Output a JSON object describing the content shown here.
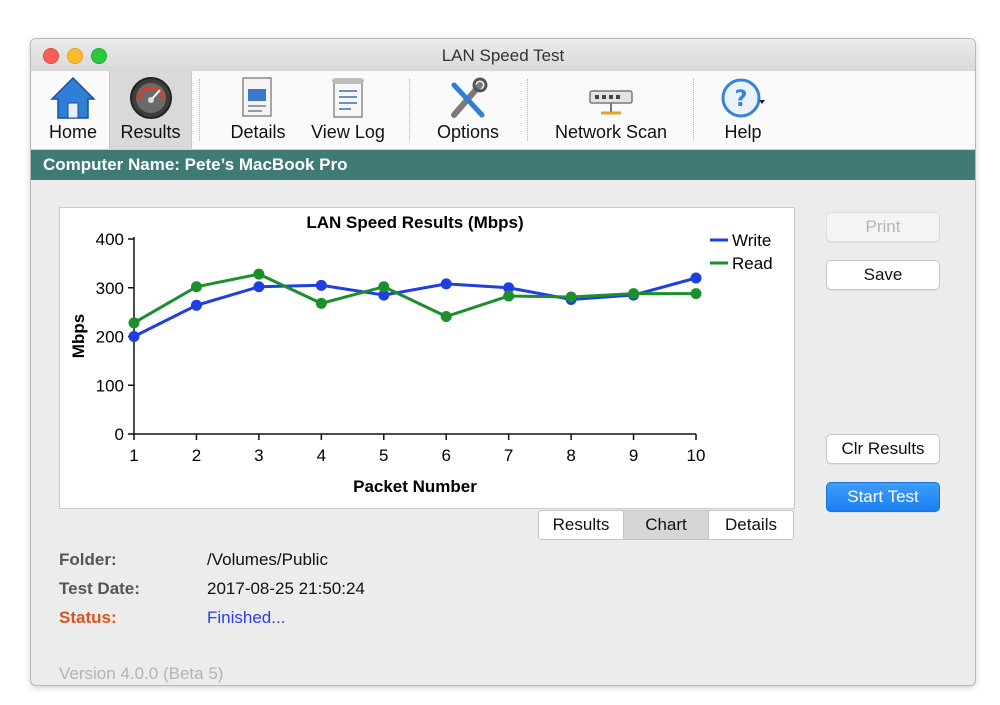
{
  "window": {
    "title": "LAN Speed Test"
  },
  "toolbar": {
    "items": [
      {
        "label": "Home",
        "icon": "home-icon"
      },
      {
        "label": "Results",
        "icon": "gauge-icon",
        "active": true
      },
      {
        "label": "Details",
        "icon": "details-icon"
      },
      {
        "label": "View Log",
        "icon": "log-icon"
      },
      {
        "label": "Options",
        "icon": "tools-icon"
      },
      {
        "label": "Network Scan",
        "icon": "network-switch-icon"
      },
      {
        "label": "Help",
        "icon": "help-icon"
      }
    ]
  },
  "computer": {
    "label": "Computer Name: Pete’s MacBook Pro"
  },
  "buttons": {
    "print": "Print",
    "save": "Save",
    "clear": "Clr Results",
    "start": "Start Test"
  },
  "tabs": {
    "results": "Results",
    "chart": "Chart",
    "details": "Details",
    "selected": "Chart"
  },
  "info": {
    "folder_label": "Folder:",
    "folder_value": "/Volumes/Public",
    "date_label": "Test Date:",
    "date_value": "2017-08-25 21:50:24",
    "status_label": "Status:",
    "status_value": "Finished..."
  },
  "version": "Version 4.0.0 (Beta 5)",
  "colors": {
    "write": "#1f3fe0",
    "read": "#1a8f2c",
    "status_label": "#d9541e",
    "status_value": "#2a3fe0",
    "header": "#3f7a75"
  },
  "chart_data": {
    "type": "line",
    "title": "LAN Speed Results (Mbps)",
    "xlabel": "Packet Number",
    "ylabel": "Mbps",
    "x": [
      1,
      2,
      3,
      4,
      5,
      6,
      7,
      8,
      9,
      10
    ],
    "ylim": [
      0,
      400
    ],
    "yticks": [
      0,
      100,
      200,
      300,
      400
    ],
    "legend": "top-right",
    "series": [
      {
        "name": "Write",
        "values": [
          200,
          264,
          302,
          305,
          285,
          308,
          300,
          276,
          285,
          320
        ]
      },
      {
        "name": "Read",
        "values": [
          228,
          302,
          328,
          268,
          302,
          241,
          283,
          281,
          288,
          288
        ]
      }
    ]
  }
}
